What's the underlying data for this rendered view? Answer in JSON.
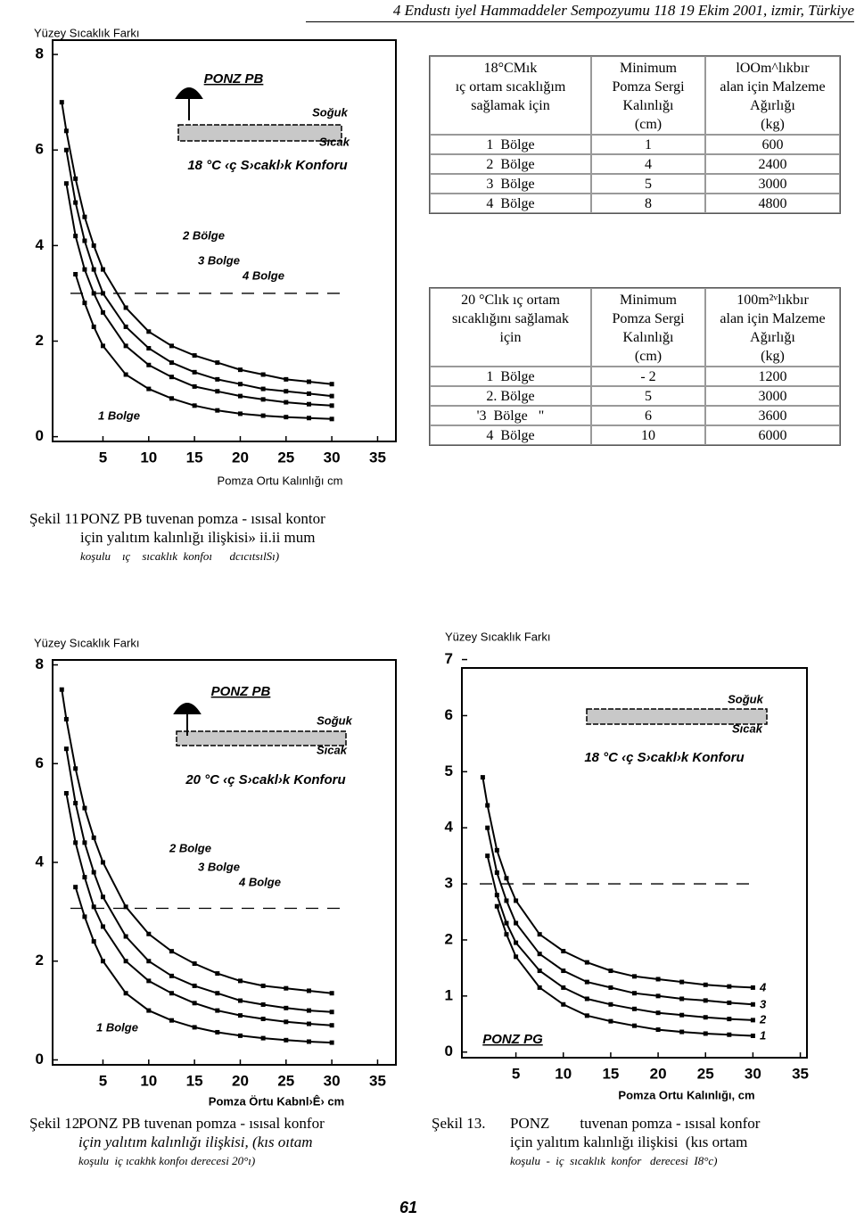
{
  "header": {
    "title": "4 Endustı iyel Hammaddeler Sempozyumu 118 19 Ekim 2001, izmir, Türkiye"
  },
  "chart_data": [
    {
      "type": "line",
      "title": "PONZ PB",
      "y_axis_title": "Yüzey Sıcaklık Farkı",
      "x_axis_title": "Pomza Ortu Kalınlığı cm",
      "annotations": [
        "Soğuk",
        "Sıcak",
        "18 °C ‹ç S›cakl›k Konforu"
      ],
      "hline": 3,
      "x": [
        0.5,
        1,
        2,
        3,
        4,
        5,
        7.5,
        10,
        12.5,
        15,
        17.5,
        20,
        22.5,
        25,
        27.5,
        30
      ],
      "series": [
        {
          "name": "4 Bolge",
          "color": "#000000",
          "values": [
            7.0,
            6.4,
            5.4,
            4.6,
            4.0,
            3.5,
            2.7,
            2.2,
            1.9,
            1.7,
            1.55,
            1.4,
            1.3,
            1.2,
            1.15,
            1.1
          ]
        },
        {
          "name": "3 Bolge",
          "color": "#000000",
          "values": [
            null,
            6.0,
            4.9,
            4.1,
            3.5,
            3.0,
            2.3,
            1.85,
            1.55,
            1.35,
            1.2,
            1.1,
            1.0,
            0.95,
            0.9,
            0.85
          ]
        },
        {
          "name": "2 Bölge",
          "color": "#000000",
          "values": [
            null,
            5.3,
            4.2,
            3.5,
            3.0,
            2.6,
            1.9,
            1.5,
            1.25,
            1.05,
            0.95,
            0.85,
            0.78,
            0.72,
            0.68,
            0.65
          ]
        },
        {
          "name": "1 Bolge",
          "color": "#000000",
          "values": [
            null,
            null,
            3.4,
            2.8,
            2.3,
            1.9,
            1.3,
            1.0,
            0.8,
            0.65,
            0.55,
            0.48,
            0.44,
            0.41,
            0.39,
            0.37
          ]
        }
      ],
      "xlim": [
        -0.5,
        37
      ],
      "ylim": [
        -0.1,
        8.3
      ],
      "xticks": [
        5,
        10,
        15,
        20,
        25,
        30,
        35
      ],
      "yticks": [
        0,
        2,
        4,
        6,
        8
      ]
    },
    {
      "type": "line",
      "title": "PONZ PB",
      "y_axis_title": "Yüzey Sıcaklık Farkı",
      "x_axis_title": "Pomza Örtu Kabnl›Ê› cm",
      "annotations": [
        "Soğuk",
        "Sıcak",
        "20 °C ‹ç S›cakl›k Konforu"
      ],
      "hline": 3.07,
      "x": [
        0.5,
        1,
        2,
        3,
        4,
        5,
        7.5,
        10,
        12.5,
        15,
        17.5,
        20,
        22.5,
        25,
        27.5,
        30
      ],
      "series": [
        {
          "name": "4 Bolge",
          "color": "#000000",
          "values": [
            7.5,
            6.9,
            5.9,
            5.1,
            4.5,
            4.0,
            3.1,
            2.55,
            2.2,
            1.95,
            1.75,
            1.6,
            1.5,
            1.45,
            1.4,
            1.35
          ]
        },
        {
          "name": "3 Bolge",
          "color": "#000000",
          "values": [
            null,
            6.3,
            5.2,
            4.4,
            3.8,
            3.3,
            2.5,
            2.0,
            1.7,
            1.5,
            1.35,
            1.2,
            1.12,
            1.05,
            1.0,
            0.97
          ]
        },
        {
          "name": "2 Bolge",
          "color": "#000000",
          "values": [
            null,
            5.4,
            4.4,
            3.7,
            3.1,
            2.7,
            2.0,
            1.6,
            1.35,
            1.15,
            1.0,
            0.9,
            0.83,
            0.77,
            0.73,
            0.7
          ]
        },
        {
          "name": "1 Bolge",
          "color": "#000000",
          "values": [
            null,
            null,
            3.5,
            2.9,
            2.4,
            2.0,
            1.35,
            1.0,
            0.8,
            0.66,
            0.56,
            0.49,
            0.44,
            0.4,
            0.37,
            0.35
          ]
        }
      ],
      "xlim": [
        -0.5,
        37
      ],
      "ylim": [
        -0.1,
        8.1
      ],
      "xticks": [
        5,
        10,
        15,
        20,
        25,
        30,
        35
      ],
      "yticks": [
        0,
        2,
        4,
        6,
        8
      ]
    },
    {
      "type": "line",
      "title": "PONZ PG",
      "y_axis_title": "Yüzey Sıcaklık Farkı",
      "x_axis_title": "Pomza Ortu Kalınlığı, cm",
      "annotations": [
        "Soğuk",
        "Sıcak",
        "18 °C ‹ç S›cakl›k Konforu"
      ],
      "hline": 3,
      "x": [
        1.5,
        2,
        3,
        4,
        5,
        7.5,
        10,
        12.5,
        15,
        17.5,
        20,
        22.5,
        25,
        27.5,
        30
      ],
      "series": [
        {
          "name": "4",
          "color": "#000000",
          "values": [
            4.9,
            4.4,
            3.6,
            3.1,
            2.7,
            2.1,
            1.8,
            1.6,
            1.45,
            1.35,
            1.3,
            1.25,
            1.2,
            1.17,
            1.15
          ]
        },
        {
          "name": "3",
          "color": "#000000",
          "values": [
            null,
            4.0,
            3.2,
            2.7,
            2.3,
            1.75,
            1.45,
            1.25,
            1.15,
            1.05,
            1.0,
            0.95,
            0.92,
            0.88,
            0.85
          ]
        },
        {
          "name": "2",
          "color": "#000000",
          "values": [
            null,
            3.5,
            2.8,
            2.3,
            1.95,
            1.45,
            1.15,
            0.95,
            0.85,
            0.77,
            0.7,
            0.66,
            0.62,
            0.59,
            0.57
          ]
        },
        {
          "name": "1",
          "color": "#000000",
          "values": [
            null,
            null,
            2.6,
            2.1,
            1.7,
            1.15,
            0.85,
            0.65,
            0.55,
            0.47,
            0.4,
            0.36,
            0.33,
            0.31,
            0.29
          ]
        }
      ],
      "xlim": [
        -0.7,
        35.7
      ],
      "ylim": [
        -0.1,
        6.85
      ],
      "xticks": [
        5,
        10,
        15,
        20,
        25,
        30,
        35
      ],
      "yticks": [
        0,
        1,
        2,
        3,
        4,
        5,
        6,
        7
      ]
    }
  ],
  "tables": [
    {
      "header": [
        [
          "18°CMık",
          "ıç ortam sıcaklığım",
          "sağlamak için"
        ],
        [
          "Minimum",
          "Pomza Sergi",
          "Kalınlığı",
          "(cm)"
        ],
        [
          "lOOm^lıkbır",
          "alan için Malzeme",
          "Ağırlığı",
          "(kg)"
        ]
      ],
      "rows": [
        [
          "1  Bölge",
          "1",
          "600"
        ],
        [
          "2  Bölge",
          "4",
          "2400"
        ],
        [
          "3  Bölge",
          "5",
          "3000"
        ],
        [
          "4  Bölge",
          "8",
          "4800"
        ]
      ]
    },
    {
      "header": [
        [
          "20 °Clık ıç ortam",
          "sıcaklığını sağlamak",
          "için"
        ],
        [
          "Minimum",
          "Pomza Sergi",
          "Kalınlığı",
          "(cm)"
        ],
        [
          "100m²ᵛlıkbır",
          "alan için Malzeme",
          "Ağırlığı",
          "(kg)"
        ]
      ],
      "rows": [
        [
          "1  Bölge",
          "- 2",
          "1200"
        ],
        [
          "2. Bölge",
          "5",
          "3000"
        ],
        [
          "'3  Bölge   \"",
          "6",
          "3600"
        ],
        [
          "4  Bölge",
          "10",
          "6000"
        ]
      ]
    }
  ],
  "captions": [
    {
      "label": "Şekil 11",
      "lines": [
        "PONZ PB tuvenan pomza - ısısal kontor",
        "için yalıtım kalınlığı ilişkisi» ii.ii mum",
        "koşulu    ıç    sıcaklık  konfoı      dcıcıtsılSı)"
      ]
    },
    {
      "label": "Şekil 12",
      "lines": [
        "PONZ PB tuvenan pomza - ısısal konfor",
        "için yalıtım kalınlığı ilişkisi, (kıs oıtam",
        "koşulu  iç ıcakhk konfoı derecesi 20°ı)"
      ]
    },
    {
      "label": "Şekil 13.",
      "lines": [
        "PONZ        tuvenan pomza - ısısal konfor",
        "için yalıtım kalınlığı ilişkisi  (kıs ortam",
        "koşulu  -  iç  sıcaklık  konfor   derecesi  I8°c)"
      ]
    }
  ],
  "page_number": "61"
}
